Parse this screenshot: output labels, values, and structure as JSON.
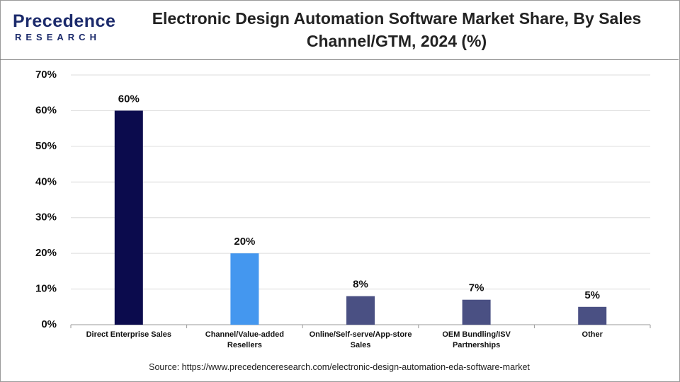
{
  "logo": {
    "name": "Precedence",
    "tagline": "RESEARCH"
  },
  "chart_data": {
    "type": "bar",
    "title": "Electronic Design Automation Software Market Share, By Sales Channel/GTM, 2024 (%)",
    "categories": [
      "Direct Enterprise Sales",
      "Channel/Value-added Resellers",
      "Online/Self-serve/App-store Sales",
      "OEM Bundling/ISV Partnerships",
      "Other"
    ],
    "values": [
      60,
      20,
      8,
      7,
      5
    ],
    "value_labels": [
      "60%",
      "20%",
      "8%",
      "7%",
      "5%"
    ],
    "colors": [
      "#0b0b4d",
      "#4497ef",
      "#4a5083",
      "#4a5083",
      "#4a5083"
    ],
    "ylim": [
      0,
      70
    ],
    "yticks": [
      {
        "value": 0,
        "label": "0%"
      },
      {
        "value": 10,
        "label": "10%"
      },
      {
        "value": 20,
        "label": "20%"
      },
      {
        "value": 30,
        "label": "30%"
      },
      {
        "value": 40,
        "label": "40%"
      },
      {
        "value": 50,
        "label": "50%"
      },
      {
        "value": 60,
        "label": "60%"
      },
      {
        "value": 70,
        "label": "70%"
      }
    ],
    "grid": true,
    "source": "Source: https://www.precedenceresearch.com/electronic-design-automation-eda-software-market"
  }
}
